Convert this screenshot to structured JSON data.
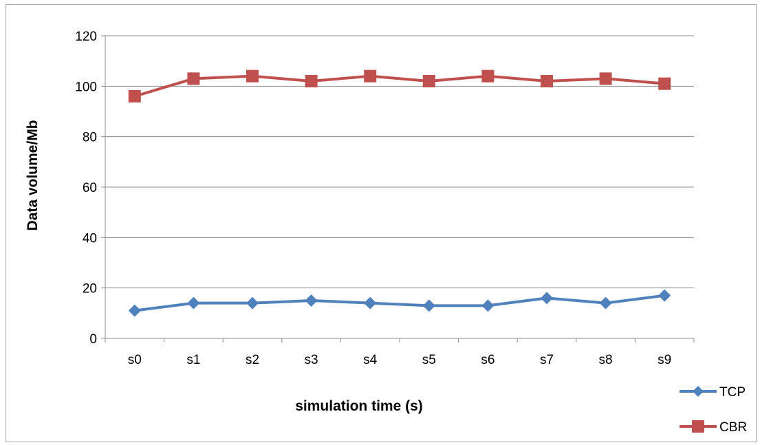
{
  "chart_data": {
    "type": "line",
    "title": "",
    "xlabel": "simulation time (s)",
    "ylabel": "Data volume/Mb",
    "categories": [
      "s0",
      "s1",
      "s2",
      "s3",
      "s4",
      "s5",
      "s6",
      "s7",
      "s8",
      "s9"
    ],
    "ylim": [
      0,
      120
    ],
    "yticks": [
      0,
      20,
      40,
      60,
      80,
      100,
      120
    ],
    "grid": true,
    "legend_position": "bottom-right",
    "series": [
      {
        "name": "TCP",
        "marker": "diamond",
        "color": "#4f81bd",
        "values": [
          11,
          14,
          14,
          15,
          14,
          13,
          13,
          16,
          14,
          17
        ]
      },
      {
        "name": "CBR",
        "marker": "square",
        "color": "#c0504d",
        "values": [
          96,
          103,
          104,
          102,
          104,
          102,
          104,
          102,
          103,
          101
        ]
      }
    ]
  }
}
